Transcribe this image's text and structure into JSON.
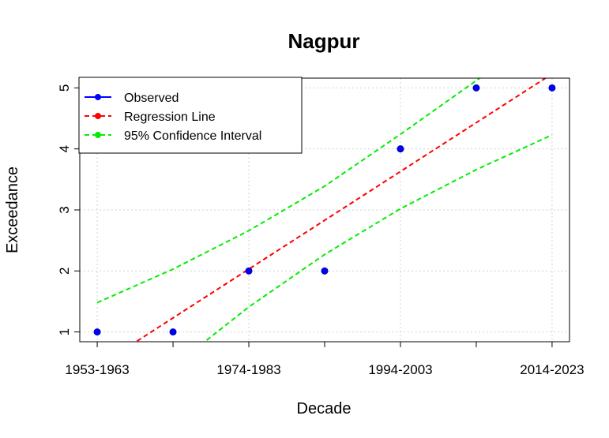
{
  "chart_data": {
    "type": "line",
    "title": "Nagpur",
    "xlabel": "Decade",
    "ylabel": "Exceedance",
    "x_index": [
      1,
      2,
      3,
      4,
      5,
      6,
      7
    ],
    "x_tick_positions": [
      1,
      3,
      5,
      7
    ],
    "x_tick_labels": [
      "1953-1963",
      "1974-1983",
      "1994-2003",
      "2014-2023"
    ],
    "y_ticks": [
      1,
      2,
      3,
      4,
      5
    ],
    "xlim": [
      0.77,
      7.23
    ],
    "ylim": [
      0.84,
      5.16
    ],
    "grid": true,
    "legend_position": "top-left",
    "series": [
      {
        "name": "Observed",
        "kind": "points",
        "color": "#0000ff",
        "x": [
          1,
          2,
          3,
          4,
          5,
          6,
          7
        ],
        "y": [
          1,
          1,
          2,
          2,
          4,
          5,
          5
        ]
      },
      {
        "name": "Regression Line",
        "kind": "dashed-line",
        "color": "#ff0000",
        "x": [
          1,
          2,
          3,
          4,
          5,
          6,
          7
        ],
        "y": [
          0.43,
          1.23,
          2.03,
          2.83,
          3.63,
          4.43,
          5.23
        ]
      },
      {
        "name": "95% Confidence Interval",
        "kind": "dashed-band",
        "color": "#00ee00",
        "x": [
          1,
          2,
          3,
          4,
          5,
          6,
          7
        ],
        "upper": [
          1.48,
          2.03,
          2.66,
          3.39,
          4.24,
          5.12,
          5.99
        ],
        "lower": [
          -0.62,
          0.43,
          1.41,
          2.27,
          3.02,
          3.66,
          4.23
        ]
      }
    ]
  }
}
